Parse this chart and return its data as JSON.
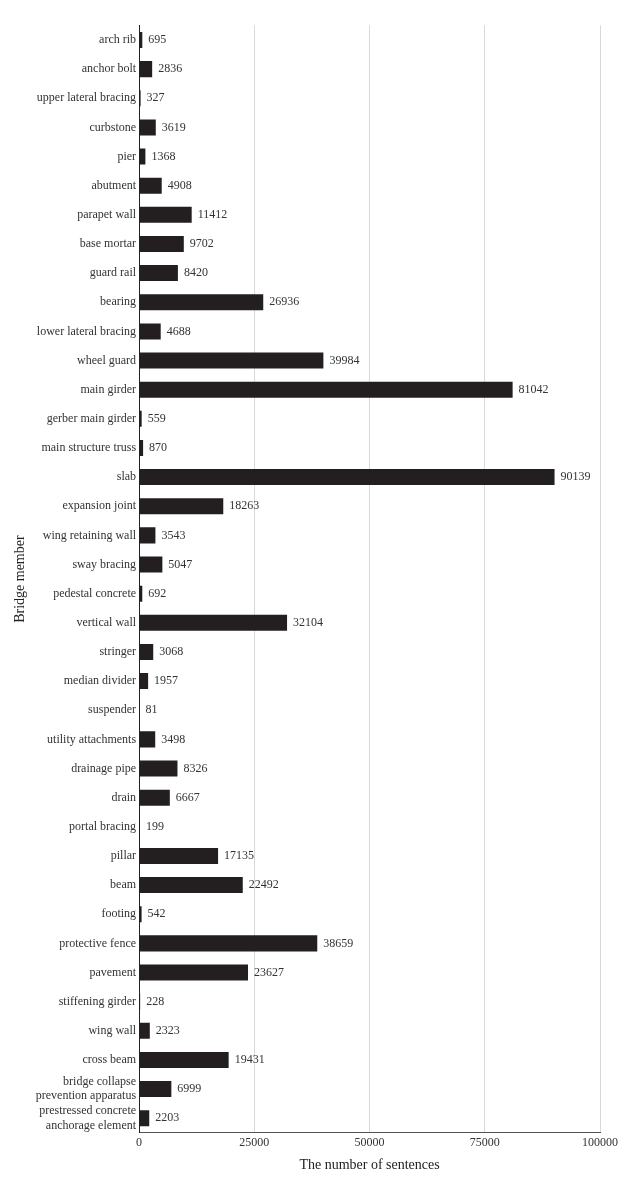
{
  "chart_data": {
    "type": "bar",
    "orientation": "horizontal",
    "xlabel": "The number of sentences",
    "ylabel": "Bridge member",
    "categories": [
      "arch rib",
      "anchor bolt",
      "upper lateral bracing",
      "curbstone",
      "pier",
      "abutment",
      "parapet wall",
      "base mortar",
      "guard rail",
      "bearing",
      "lower lateral bracing",
      "wheel guard",
      "main girder",
      "gerber main girder",
      "main structure truss",
      "slab",
      "expansion joint",
      "wing retaining wall",
      "sway bracing",
      "pedestal concrete",
      "vertical wall",
      "stringer",
      "median divider",
      "suspender",
      "utility attachments",
      "drainage pipe",
      "drain",
      "portal bracing",
      "pillar",
      "beam",
      "footing",
      "protective fence",
      "pavement",
      "stiffening girder",
      "wing wall",
      "cross beam",
      "bridge collapse prevention apparatus",
      "prestressed concrete anchorage element"
    ],
    "values": [
      695,
      2836,
      327,
      3619,
      1368,
      4908,
      11412,
      9702,
      8420,
      26936,
      4688,
      39984,
      81042,
      559,
      870,
      90139,
      18263,
      3543,
      5047,
      692,
      32104,
      3068,
      1957,
      81,
      3498,
      8326,
      6667,
      199,
      17135,
      22492,
      542,
      38659,
      23627,
      228,
      2323,
      19431,
      6999,
      2203
    ],
    "color": "#231f20",
    "data_labels": true,
    "xlim": [
      0,
      100000
    ],
    "xticks": [
      0,
      25000,
      50000,
      75000,
      100000
    ],
    "grid": "x",
    "legend": false
  }
}
